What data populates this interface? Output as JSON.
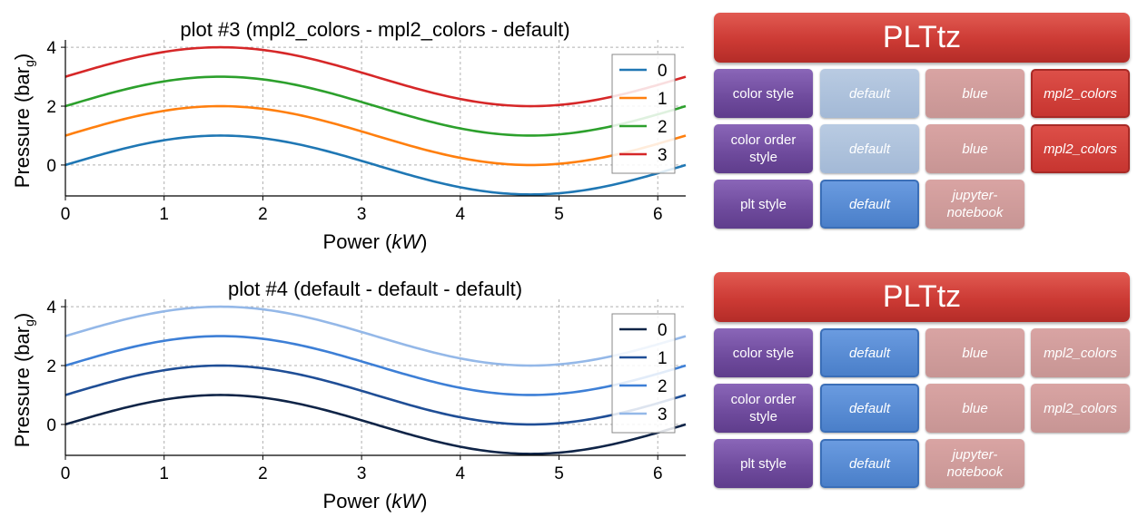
{
  "plots": [
    {
      "id": "plot3",
      "title": "plot #3 (mpl2_colors - mpl2_colors - default)",
      "xlabel_main": "Power (",
      "xlabel_unit": "kW",
      "xlabel_close": ")",
      "ylabel_main": "Pressure (bar",
      "ylabel_sub": "g",
      "ylabel_close": ")",
      "xticks": [
        "0",
        "1",
        "2",
        "3",
        "4",
        "5",
        "6"
      ],
      "yticks": [
        "0",
        "2",
        "4"
      ],
      "legend": [
        "0",
        "1",
        "2",
        "3"
      ],
      "colors": [
        "#1f77b4",
        "#ff7f0e",
        "#2ca02c",
        "#d62728"
      ]
    },
    {
      "id": "plot4",
      "title": "plot #4 (default - default - default)",
      "xlabel_main": "Power (",
      "xlabel_unit": "kW",
      "xlabel_close": ")",
      "ylabel_main": "Pressure (bar",
      "ylabel_sub": "g",
      "ylabel_close": ")",
      "xticks": [
        "0",
        "1",
        "2",
        "3",
        "4",
        "5",
        "6"
      ],
      "yticks": [
        "0",
        "2",
        "4"
      ],
      "legend": [
        "0",
        "1",
        "2",
        "3"
      ],
      "colors": [
        "#0f2447",
        "#1f4e96",
        "#3d7fd6",
        "#94b8e8"
      ]
    }
  ],
  "chart_data": [
    {
      "type": "line",
      "title": "plot #3 (mpl2_colors - mpl2_colors - default)",
      "xlabel": "Power (kW)",
      "ylabel": "Pressure (bar_g)",
      "xlim": [
        0,
        6.283
      ],
      "ylim": [
        -1.05,
        4.25
      ],
      "grid": true,
      "legend_position": "top-right",
      "x": [
        0,
        0.785,
        1.571,
        2.356,
        3.142,
        3.927,
        4.712,
        5.498,
        6.283
      ],
      "series": [
        {
          "name": "0",
          "values": [
            0,
            0.71,
            1,
            0.71,
            0,
            -0.71,
            -1,
            -0.71,
            0
          ]
        },
        {
          "name": "1",
          "values": [
            1,
            1.71,
            2,
            1.71,
            1,
            0.29,
            0,
            0.29,
            1
          ]
        },
        {
          "name": "2",
          "values": [
            2,
            2.71,
            3,
            2.71,
            2,
            1.29,
            1,
            1.29,
            2
          ]
        },
        {
          "name": "3",
          "values": [
            3,
            3.71,
            4,
            3.71,
            3,
            2.29,
            2,
            2.29,
            3
          ]
        }
      ]
    },
    {
      "type": "line",
      "title": "plot #4 (default - default - default)",
      "xlabel": "Power (kW)",
      "ylabel": "Pressure (bar_g)",
      "xlim": [
        0,
        6.283
      ],
      "ylim": [
        -1.05,
        4.25
      ],
      "grid": true,
      "legend_position": "top-right",
      "x": [
        0,
        0.785,
        1.571,
        2.356,
        3.142,
        3.927,
        4.712,
        5.498,
        6.283
      ],
      "series": [
        {
          "name": "0",
          "values": [
            0,
            0.71,
            1,
            0.71,
            0,
            -0.71,
            -1,
            -0.71,
            0
          ]
        },
        {
          "name": "1",
          "values": [
            1,
            1.71,
            2,
            1.71,
            1,
            0.29,
            0,
            0.29,
            1
          ]
        },
        {
          "name": "2",
          "values": [
            2,
            2.71,
            3,
            2.71,
            2,
            1.29,
            1,
            1.29,
            2
          ]
        },
        {
          "name": "3",
          "values": [
            3,
            3.71,
            4,
            3.71,
            3,
            2.29,
            2,
            2.29,
            3
          ]
        }
      ]
    }
  ],
  "panels": [
    {
      "title": "PLTtz",
      "rows": [
        {
          "label": "color style",
          "options": [
            {
              "text": "default",
              "state": "light"
            },
            {
              "text": "blue",
              "state": "inactive"
            },
            {
              "text": "mpl2_colors",
              "state": "red"
            }
          ]
        },
        {
          "label": "color order style",
          "options": [
            {
              "text": "default",
              "state": "light"
            },
            {
              "text": "blue",
              "state": "inactive"
            },
            {
              "text": "mpl2_colors",
              "state": "red"
            }
          ]
        },
        {
          "label": "plt style",
          "options": [
            {
              "text": "default",
              "state": "blue"
            },
            {
              "text": "jupyter-notebook",
              "state": "inactive"
            }
          ]
        }
      ]
    },
    {
      "title": "PLTtz",
      "rows": [
        {
          "label": "color style",
          "options": [
            {
              "text": "default",
              "state": "blue"
            },
            {
              "text": "blue",
              "state": "inactive"
            },
            {
              "text": "mpl2_colors",
              "state": "inactive"
            }
          ]
        },
        {
          "label": "color order style",
          "options": [
            {
              "text": "default",
              "state": "blue"
            },
            {
              "text": "blue",
              "state": "inactive"
            },
            {
              "text": "mpl2_colors",
              "state": "inactive"
            }
          ]
        },
        {
          "label": "plt style",
          "options": [
            {
              "text": "default",
              "state": "blue"
            },
            {
              "text": "jupyter-notebook",
              "state": "inactive"
            }
          ]
        }
      ]
    }
  ]
}
